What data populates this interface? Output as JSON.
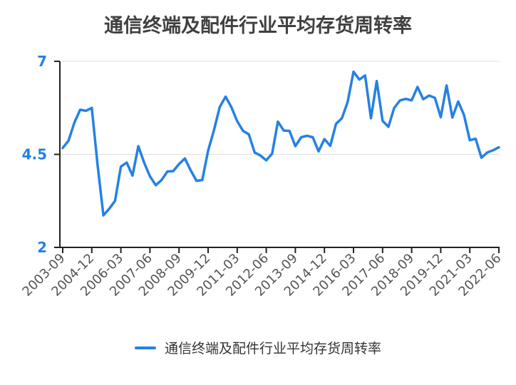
{
  "chart_data": {
    "type": "line",
    "title": "通信终端及配件行业平均存货周转率",
    "xlabel": "",
    "ylabel": "",
    "ylim": [
      2,
      7
    ],
    "yticks": [
      "2",
      "4.5",
      "7"
    ],
    "grid": "horizontal",
    "legend_position": "bottom",
    "color": "#2581e3",
    "x_tick_labels": [
      "2003-09",
      "2004-12",
      "2006-03",
      "2007-06",
      "2008-09",
      "2009-12",
      "2011-03",
      "2012-06",
      "2013-09",
      "2014-12",
      "2016-03",
      "2017-06",
      "2018-09",
      "2019-12",
      "2021-03",
      "2022-06"
    ],
    "x": [
      "2003-09",
      "2003-12",
      "2004-03",
      "2004-06",
      "2004-09",
      "2004-12",
      "2005-03",
      "2005-06",
      "2005-09",
      "2005-12",
      "2006-03",
      "2006-06",
      "2006-09",
      "2006-12",
      "2007-03",
      "2007-06",
      "2007-09",
      "2007-12",
      "2008-03",
      "2008-06",
      "2008-09",
      "2008-12",
      "2009-03",
      "2009-06",
      "2009-09",
      "2009-12",
      "2010-03",
      "2010-06",
      "2010-09",
      "2010-12",
      "2011-03",
      "2011-06",
      "2011-09",
      "2011-12",
      "2012-03",
      "2012-06",
      "2012-09",
      "2012-12",
      "2013-03",
      "2013-06",
      "2013-09",
      "2013-12",
      "2014-03",
      "2014-06",
      "2014-09",
      "2014-12",
      "2015-03",
      "2015-06",
      "2015-09",
      "2015-12",
      "2016-03",
      "2016-06",
      "2016-09",
      "2016-12",
      "2017-03",
      "2017-06",
      "2017-09",
      "2017-12",
      "2018-03",
      "2018-06",
      "2018-09",
      "2018-12",
      "2019-03",
      "2019-06",
      "2019-09",
      "2019-12",
      "2020-03",
      "2020-06",
      "2020-09",
      "2020-12",
      "2021-03",
      "2021-06",
      "2021-09",
      "2021-12",
      "2022-03",
      "2022-06"
    ],
    "series": [
      {
        "name": "通信终端及配件行业平均存货周转率",
        "values": [
          4.67,
          4.87,
          5.35,
          5.7,
          5.67,
          5.75,
          4.2,
          2.86,
          3.04,
          3.25,
          4.17,
          4.28,
          3.93,
          4.72,
          4.28,
          3.91,
          3.67,
          3.81,
          4.04,
          4.05,
          4.24,
          4.39,
          4.07,
          3.79,
          3.81,
          4.6,
          5.15,
          5.77,
          6.05,
          5.77,
          5.39,
          5.13,
          5.04,
          4.55,
          4.47,
          4.34,
          4.52,
          5.38,
          5.14,
          5.13,
          4.72,
          4.96,
          5.0,
          4.96,
          4.58,
          4.91,
          4.73,
          5.32,
          5.47,
          5.91,
          6.72,
          6.51,
          6.62,
          5.47,
          6.47,
          5.4,
          5.24,
          5.75,
          5.95,
          5.99,
          5.95,
          6.31,
          5.98,
          6.08,
          6.02,
          5.5,
          6.35,
          5.49,
          5.92,
          5.56,
          4.88,
          4.92,
          4.41,
          4.55,
          4.61,
          4.69
        ]
      }
    ]
  }
}
